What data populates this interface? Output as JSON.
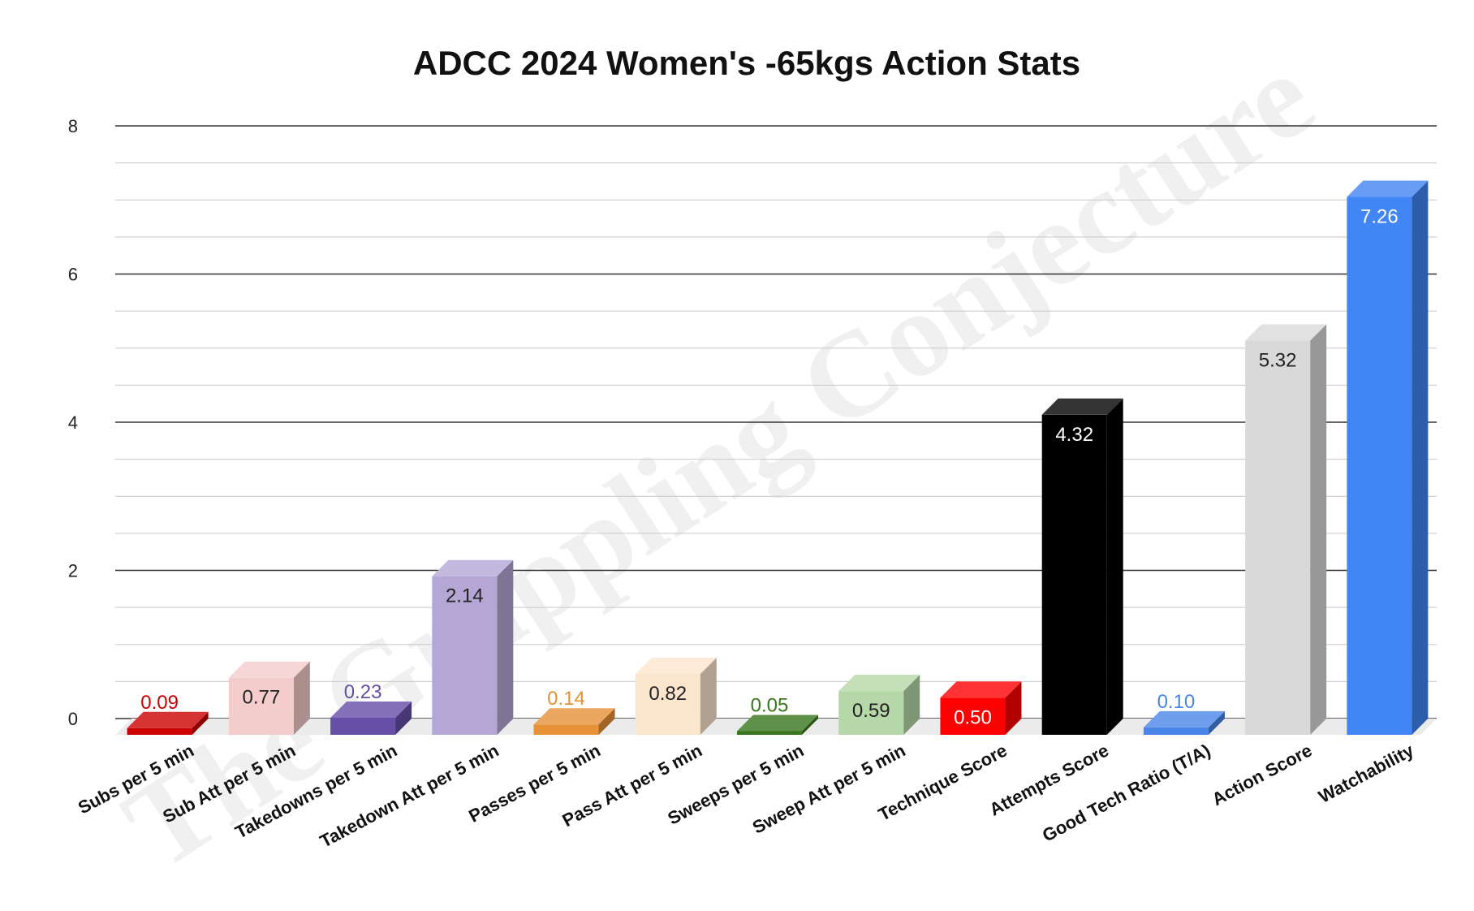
{
  "chart_data": {
    "type": "bar",
    "title": "ADCC 2024 Women's -65kgs Action Stats",
    "xlabel": "",
    "ylabel": "",
    "ylim": [
      0,
      8
    ],
    "yticks": [
      "0",
      "2",
      "4",
      "6",
      "8"
    ],
    "grid": true,
    "legend": "none",
    "watermark": "The Grappling Conjecture",
    "categories": [
      "Subs per 5 min",
      "Sub Att per 5 min",
      "Takedowns per 5 min",
      "Takedown Att per 5 min",
      "Passes per 5 min",
      "Pass Att per 5 min",
      "Sweeps per 5 min",
      "Sweep Att per 5 min",
      "Technique Score",
      "Attempts Score",
      "Good Tech Ratio (T/A)",
      "Action Score",
      "Watchability"
    ],
    "values": [
      0.09,
      0.77,
      0.23,
      2.14,
      0.14,
      0.82,
      0.05,
      0.59,
      0.5,
      4.32,
      0.1,
      5.32,
      7.26
    ],
    "labels": [
      "0.09",
      "0.77",
      "0.23",
      "2.14",
      "0.14",
      "0.82",
      "0.05",
      "0.59",
      "0.50",
      "4.32",
      "0.10",
      "5.32",
      "7.26"
    ],
    "colors": [
      "#cc0000",
      "#f4cccc",
      "#674ea7",
      "#b4a7d6",
      "#e69138",
      "#fce5cd",
      "#38761d",
      "#b6d7a8",
      "#ff0000",
      "#000000",
      "#4a86e8",
      "#d9d9d9",
      "#4285f4"
    ],
    "label_colors": [
      "#cc0000",
      "#222222",
      "#674ea7",
      "#222222",
      "#e69138",
      "#222222",
      "#38761d",
      "#222222",
      "#ffffff",
      "#ffffff",
      "#4a86e8",
      "#222222",
      "#ffffff"
    ],
    "label_inside": [
      false,
      true,
      false,
      true,
      false,
      true,
      false,
      true,
      true,
      true,
      false,
      true,
      true
    ]
  }
}
